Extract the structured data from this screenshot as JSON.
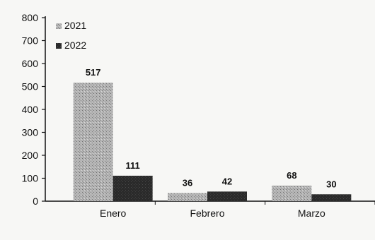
{
  "chart_data": {
    "type": "bar",
    "categories": [
      "Enero",
      "Febrero",
      "Marzo"
    ],
    "series": [
      {
        "name": "2021",
        "values": [
          517,
          36,
          68
        ],
        "color": "#a8a8a8"
      },
      {
        "name": "2022",
        "values": [
          111,
          42,
          30
        ],
        "color": "#262626"
      }
    ],
    "yticks": [
      0,
      100,
      200,
      300,
      400,
      500,
      600,
      700,
      800
    ],
    "ylim": [
      0,
      800
    ],
    "grid": false,
    "legend_position": "top-left"
  }
}
